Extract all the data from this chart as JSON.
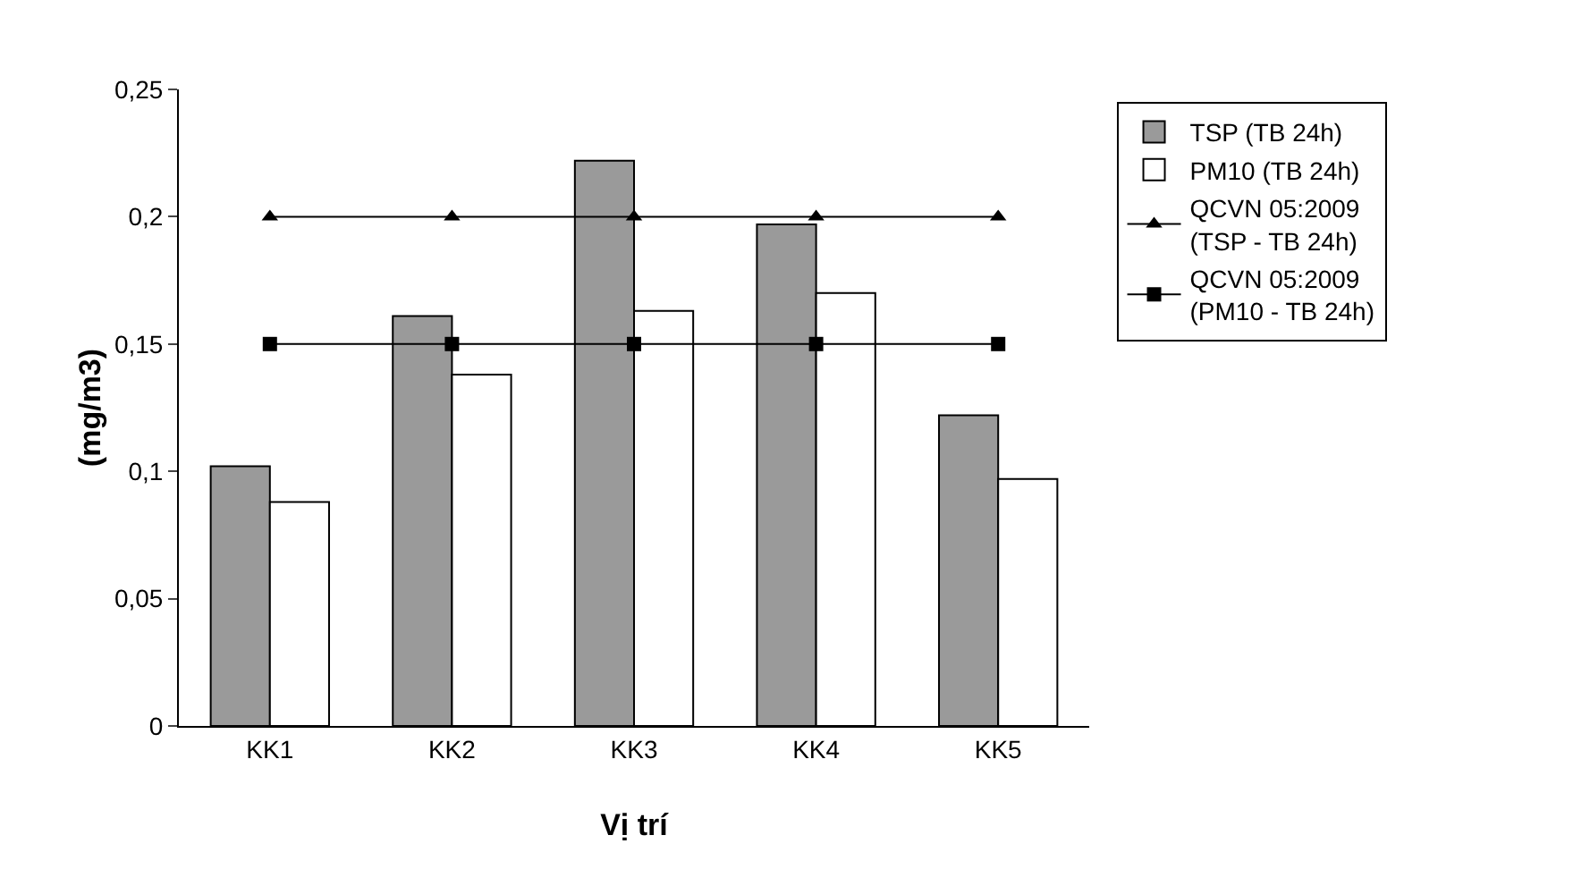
{
  "chart_data": {
    "type": "bar",
    "xlabel": "Vị trí",
    "ylabel": "(mg/m3)",
    "categories": [
      "KK1",
      "KK2",
      "KK3",
      "KK4",
      "KK5"
    ],
    "series": [
      {
        "name": "TSP (TB 24h)",
        "color": "#9a9a9a",
        "values": [
          0.102,
          0.161,
          0.222,
          0.197,
          0.122
        ]
      },
      {
        "name": "PM10 (TB 24h)",
        "color": "#ffffff",
        "values": [
          0.088,
          0.138,
          0.163,
          0.17,
          0.097
        ]
      },
      {
        "name": "QCVN 05:2009\n(TSP - TB 24h)",
        "type": "line",
        "marker": "triangle",
        "color": "#000000",
        "values": [
          0.2,
          0.2,
          0.2,
          0.2,
          0.2
        ]
      },
      {
        "name": "QCVN 05:2009\n(PM10 - TB 24h)",
        "type": "line",
        "marker": "square",
        "color": "#000000",
        "values": [
          0.15,
          0.15,
          0.15,
          0.15,
          0.15
        ]
      }
    ],
    "ylim": [
      0,
      0.25
    ],
    "yticks": [
      0,
      {
        "value": 0.05,
        "label": "0,05"
      },
      {
        "value": 0.1,
        "label": "0,1"
      },
      {
        "value": 0.15,
        "label": "0,15"
      },
      {
        "value": 0.2,
        "label": "0,2"
      },
      {
        "value": 0.25,
        "label": "0,25"
      }
    ],
    "grid": false,
    "legend": "right"
  }
}
